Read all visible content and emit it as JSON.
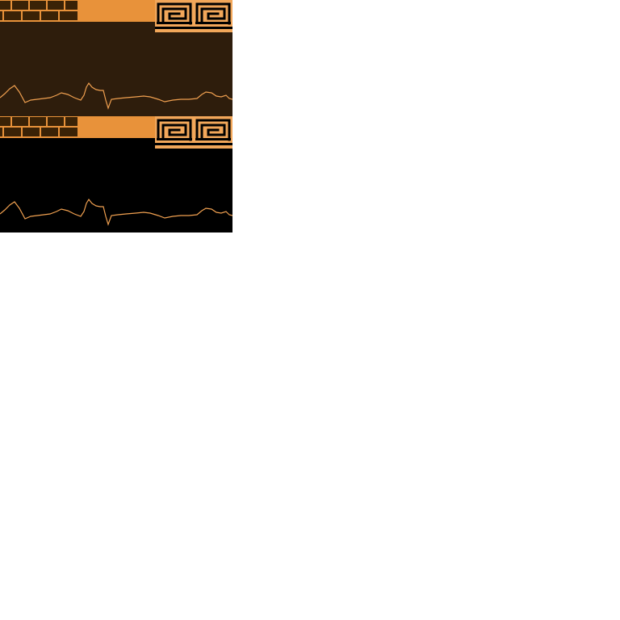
{
  "tileset": {
    "colors": {
      "orange": "#e8923a",
      "light_orange": "#f2a75a",
      "line": "#f0a050",
      "dark_brick": "#3a2206",
      "mortar": "#e8923a",
      "brown_background": "#2e1d0c",
      "black_background": "#000000",
      "page_background": "#ffffff"
    },
    "panels": [
      {
        "name": "brown-variant",
        "background": "#2e1d0c"
      },
      {
        "name": "black-variant",
        "background": "#000000"
      }
    ],
    "tiles": [
      {
        "name": "dark-brick-tile",
        "icon": "dark-brick-icon"
      },
      {
        "name": "orange-brick-tile",
        "icon": "orange-brick-icon"
      },
      {
        "name": "greek-key-tile",
        "icon": "greek-key-meander-icon"
      }
    ],
    "ground_line": {
      "icon": "ground-outline-icon"
    }
  }
}
